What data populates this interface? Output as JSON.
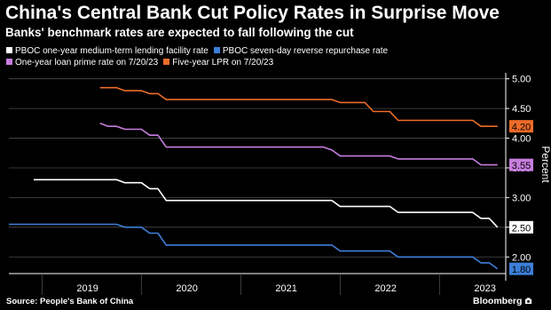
{
  "title": "China's Central Bank Cut Policy Rates in Surprise Move",
  "subtitle": "Banks' benchmark rates are expected to fall following the cut",
  "source": "Source: People's Bank of China",
  "brand": "Bloomberg",
  "colors": {
    "background": "#000000",
    "text": "#ffffff",
    "grid": "#4d4d4d"
  },
  "chart_data": {
    "type": "line",
    "xlabel": "",
    "ylabel": "Percent",
    "x_ticks": [
      "2019",
      "2020",
      "2021",
      "2022",
      "2023"
    ],
    "xlim": [
      "2018-09",
      "2023-09"
    ],
    "ylim": [
      1.6,
      5.1
    ],
    "y_ticks": [
      2.0,
      2.5,
      3.0,
      3.5,
      4.0,
      4.5,
      5.0
    ],
    "y_tick_labels": [
      "2.00",
      "2.50",
      "3.00",
      "3.50",
      "4.00",
      "4.50",
      "5.00"
    ],
    "grid": true,
    "legend_position": "top",
    "series": [
      {
        "name": "PBOC one-year medium-term lending facility rate",
        "color": "#ffffff",
        "end_label": "2.50",
        "points": [
          [
            "2018-12",
            3.3
          ],
          [
            "2019-10",
            3.3
          ],
          [
            "2019-11",
            3.25
          ],
          [
            "2020-01",
            3.25
          ],
          [
            "2020-02",
            3.15
          ],
          [
            "2020-03",
            3.15
          ],
          [
            "2020-04",
            2.95
          ],
          [
            "2021-12",
            2.95
          ],
          [
            "2022-01",
            2.85
          ],
          [
            "2022-07",
            2.85
          ],
          [
            "2022-08",
            2.75
          ],
          [
            "2023-05",
            2.75
          ],
          [
            "2023-06",
            2.65
          ],
          [
            "2023-07",
            2.65
          ],
          [
            "2023-08",
            2.5
          ]
        ]
      },
      {
        "name": "PBOC seven-day reverse repurchase rate",
        "color": "#3d7fd9",
        "end_label": "1.80",
        "points": [
          [
            "2018-09",
            2.55
          ],
          [
            "2019-10",
            2.55
          ],
          [
            "2019-11",
            2.5
          ],
          [
            "2020-01",
            2.5
          ],
          [
            "2020-02",
            2.4
          ],
          [
            "2020-03",
            2.4
          ],
          [
            "2020-04",
            2.2
          ],
          [
            "2021-12",
            2.2
          ],
          [
            "2022-01",
            2.1
          ],
          [
            "2022-07",
            2.1
          ],
          [
            "2022-08",
            2.0
          ],
          [
            "2023-05",
            2.0
          ],
          [
            "2023-06",
            1.9
          ],
          [
            "2023-07",
            1.9
          ],
          [
            "2023-08",
            1.8
          ]
        ]
      },
      {
        "name": "One-year loan prime rate on 7/20/23",
        "color": "#c77dde",
        "end_label": "3.55",
        "points": [
          [
            "2019-08",
            4.25
          ],
          [
            "2019-09",
            4.2
          ],
          [
            "2019-10",
            4.2
          ],
          [
            "2019-11",
            4.15
          ],
          [
            "2020-01",
            4.15
          ],
          [
            "2020-02",
            4.05
          ],
          [
            "2020-03",
            4.05
          ],
          [
            "2020-04",
            3.85
          ],
          [
            "2021-11",
            3.85
          ],
          [
            "2021-12",
            3.8
          ],
          [
            "2022-01",
            3.7
          ],
          [
            "2022-07",
            3.7
          ],
          [
            "2022-08",
            3.65
          ],
          [
            "2023-05",
            3.65
          ],
          [
            "2023-06",
            3.55
          ],
          [
            "2023-08",
            3.55
          ]
        ]
      },
      {
        "name": "Five-year LPR on 7/20/23",
        "color": "#ee6b28",
        "end_label": "4.20",
        "points": [
          [
            "2019-08",
            4.85
          ],
          [
            "2019-10",
            4.85
          ],
          [
            "2019-11",
            4.8
          ],
          [
            "2020-01",
            4.8
          ],
          [
            "2020-02",
            4.75
          ],
          [
            "2020-03",
            4.75
          ],
          [
            "2020-04",
            4.65
          ],
          [
            "2021-12",
            4.65
          ],
          [
            "2022-01",
            4.6
          ],
          [
            "2022-04",
            4.6
          ],
          [
            "2022-05",
            4.45
          ],
          [
            "2022-07",
            4.45
          ],
          [
            "2022-08",
            4.3
          ],
          [
            "2023-05",
            4.3
          ],
          [
            "2023-06",
            4.2
          ],
          [
            "2023-08",
            4.2
          ]
        ]
      }
    ]
  }
}
